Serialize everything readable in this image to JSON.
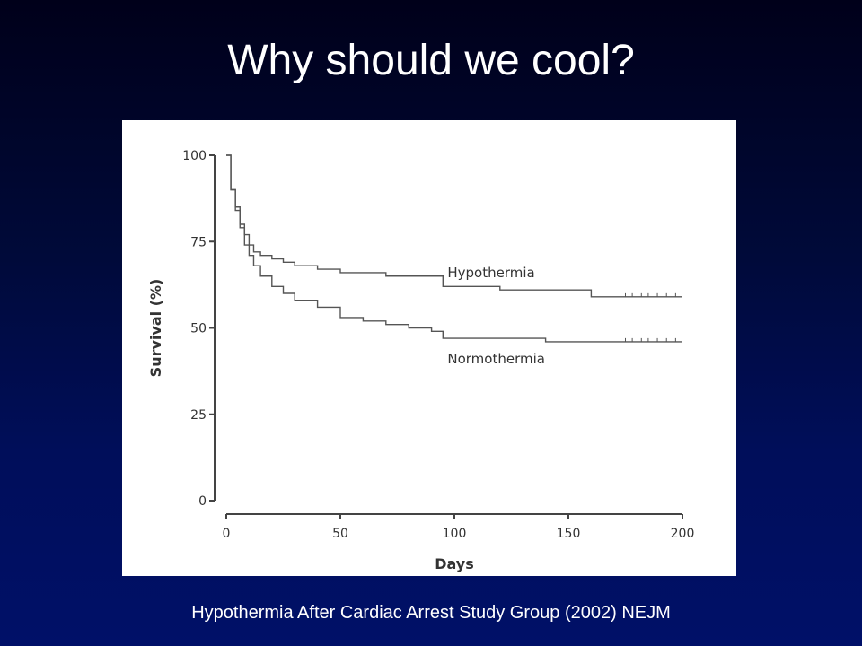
{
  "slide": {
    "title": "Why should we cool?",
    "citation": "Hypothermia After Cardiac Arrest Study Group (2002) NEJM"
  },
  "colors": {
    "background": "#000a3a",
    "text": "#ffffff",
    "plot_line": "#555555"
  },
  "chart_data": {
    "type": "line",
    "title": "",
    "xlabel": "Days",
    "ylabel": "Survival (%)",
    "xlim": [
      0,
      200
    ],
    "ylim": [
      0,
      100
    ],
    "x_ticks": [
      0,
      50,
      100,
      150,
      200
    ],
    "y_ticks": [
      0,
      25,
      50,
      75,
      100
    ],
    "grid": false,
    "series": [
      {
        "name": "Hypothermia",
        "x": [
          0,
          2,
          4,
          6,
          8,
          10,
          12,
          15,
          20,
          25,
          30,
          40,
          50,
          60,
          70,
          80,
          90,
          95,
          100,
          110,
          120,
          130,
          140,
          150,
          160,
          170,
          180,
          190,
          200
        ],
        "y": [
          100,
          90,
          84,
          80,
          77,
          74,
          72,
          71,
          70,
          69,
          68,
          67,
          66,
          66,
          65,
          65,
          65,
          62,
          62,
          62,
          61,
          61,
          61,
          61,
          59,
          59,
          59,
          59,
          59
        ]
      },
      {
        "name": "Normothermia",
        "x": [
          0,
          2,
          4,
          6,
          8,
          10,
          12,
          15,
          20,
          25,
          30,
          40,
          50,
          60,
          70,
          80,
          90,
          95,
          100,
          110,
          120,
          130,
          140,
          150,
          160,
          170,
          180,
          190,
          200
        ],
        "y": [
          100,
          90,
          85,
          79,
          74,
          71,
          68,
          65,
          62,
          60,
          58,
          56,
          53,
          52,
          51,
          50,
          49,
          47,
          47,
          47,
          47,
          47,
          46,
          46,
          46,
          46,
          46,
          46,
          46
        ]
      }
    ]
  }
}
